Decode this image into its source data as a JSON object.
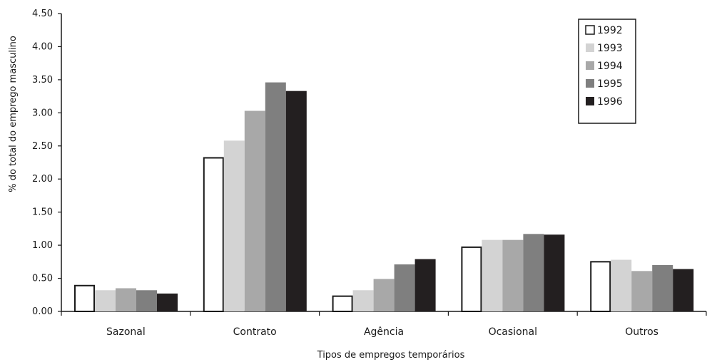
{
  "chart_data": {
    "type": "bar",
    "title": "",
    "xlabel": "Tipos de empregos temporários",
    "ylabel": "% do total do emprego masculino",
    "ylim": [
      0,
      4.5
    ],
    "yticks": [
      "0.00",
      "0.50",
      "1.00",
      "1.50",
      "2.00",
      "2.50",
      "3.00",
      "3.50",
      "4.00",
      "4.50"
    ],
    "categories": [
      "Sazonal",
      "Contrato",
      "Agência",
      "Ocasional",
      "Outros"
    ],
    "series": [
      {
        "name": "1992",
        "color": "#ffffff",
        "values": [
          0.39,
          2.32,
          0.23,
          0.97,
          0.75
        ]
      },
      {
        "name": "1993",
        "color": "#d3d3d3",
        "values": [
          0.32,
          2.58,
          0.32,
          1.08,
          0.78
        ]
      },
      {
        "name": "1994",
        "color": "#a8a8a8",
        "values": [
          0.35,
          3.03,
          0.49,
          1.08,
          0.61
        ]
      },
      {
        "name": "1995",
        "color": "#7f7f7f",
        "values": [
          0.32,
          3.46,
          0.71,
          1.17,
          0.7
        ]
      },
      {
        "name": "1996",
        "color": "#231f20",
        "values": [
          0.27,
          3.33,
          0.79,
          1.16,
          0.64
        ]
      }
    ],
    "grid": false,
    "legend_position": "top-right"
  }
}
